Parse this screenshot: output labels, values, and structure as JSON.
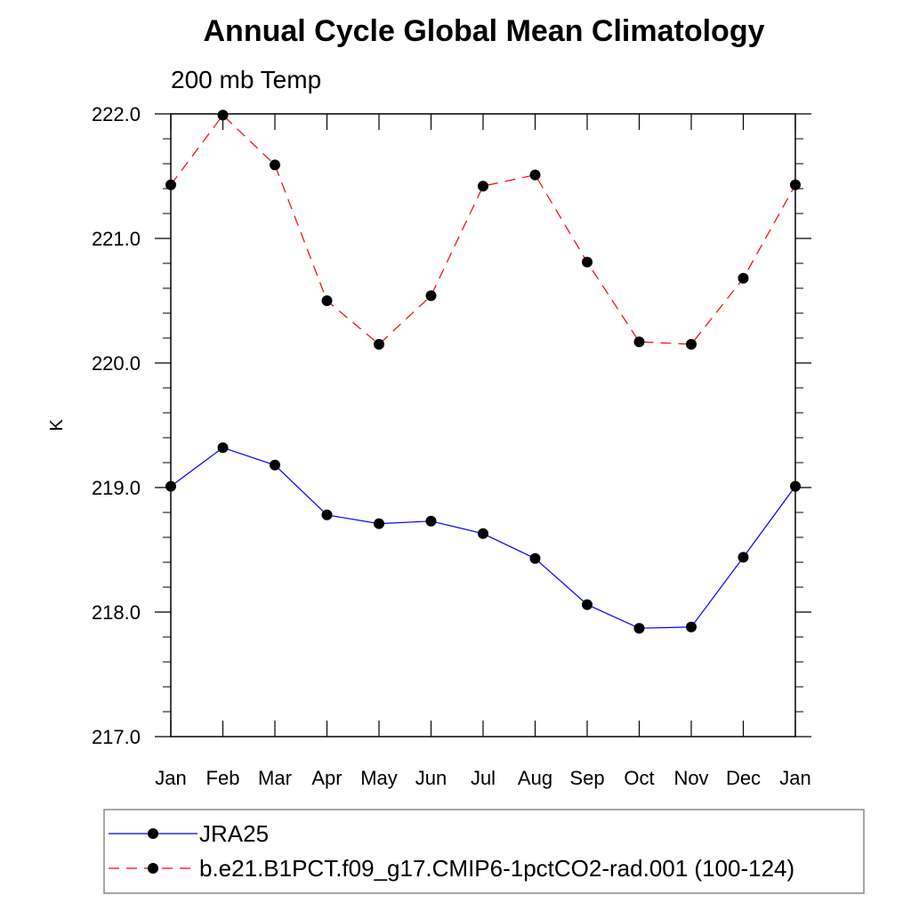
{
  "chart_data": {
    "type": "line",
    "title": "Annual Cycle Global Mean Climatology",
    "subtitle": "200 mb Temp",
    "xlabel": "",
    "ylabel": "K",
    "categories": [
      "Jan",
      "Feb",
      "Mar",
      "Apr",
      "May",
      "Jun",
      "Jul",
      "Aug",
      "Sep",
      "Oct",
      "Nov",
      "Dec",
      "Jan"
    ],
    "ylim": [
      217.0,
      222.0
    ],
    "yticks": [
      217.0,
      218.0,
      219.0,
      220.0,
      221.0,
      222.0
    ],
    "ytick_labels": [
      "217.0",
      "218.0",
      "219.0",
      "220.0",
      "221.0",
      "222.0"
    ],
    "y_minor_step": 0.2,
    "series": [
      {
        "name": "JRA25",
        "color": "#0000ff",
        "dash": "solid",
        "values": [
          219.01,
          219.32,
          219.18,
          218.78,
          218.71,
          218.73,
          218.63,
          218.43,
          218.06,
          217.87,
          217.88,
          218.44,
          219.01
        ]
      },
      {
        "name": "b.e21.B1PCT.f09_g17.CMIP6-1pctCO2-rad.001 (100-124)",
        "color": "#ff0000",
        "dash": "dashed",
        "values": [
          221.43,
          221.99,
          221.59,
          220.5,
          220.15,
          220.54,
          221.42,
          221.51,
          220.81,
          220.17,
          220.15,
          220.68,
          221.43
        ]
      }
    ],
    "grid": false,
    "legend_position": "bottom"
  }
}
